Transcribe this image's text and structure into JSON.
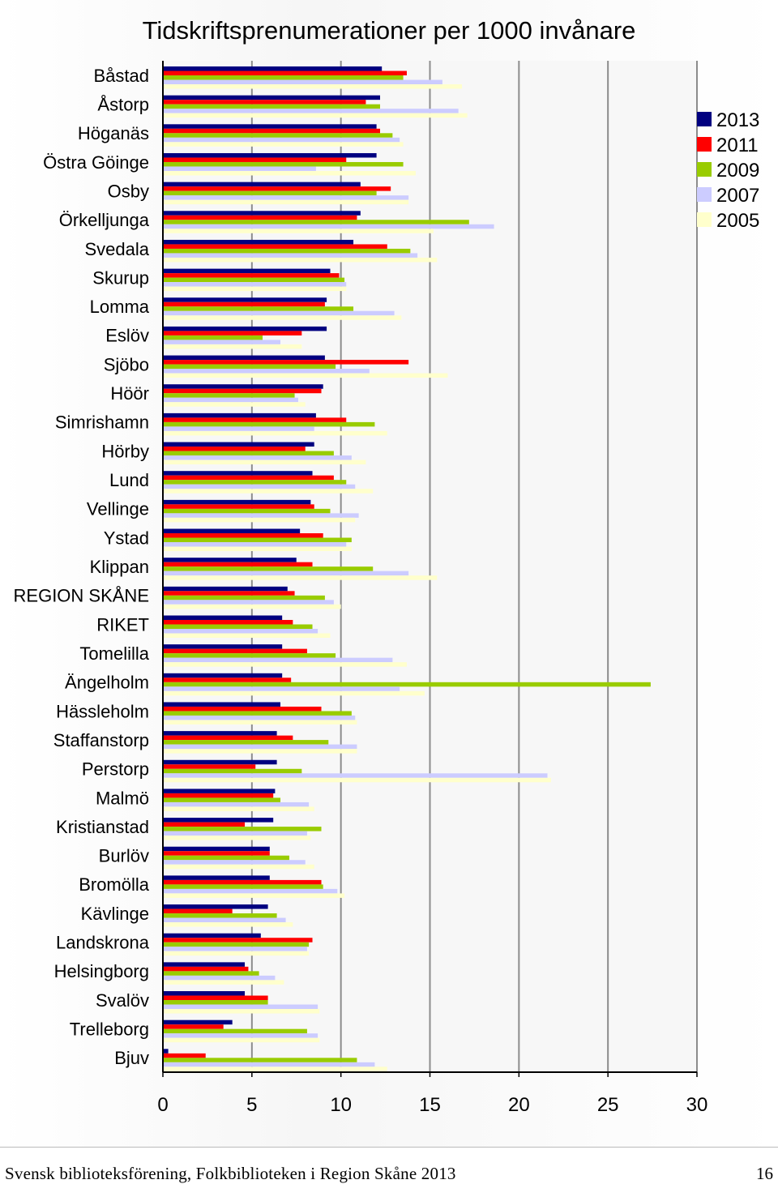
{
  "chart_data": {
    "type": "bar",
    "orientation": "horizontal",
    "title": "Tidskriftsprenumerationer per 1000 invånare",
    "xlim": [
      0,
      30
    ],
    "xticks": [
      0,
      5,
      10,
      15,
      20,
      25,
      30
    ],
    "grid": true,
    "legend_position": "right",
    "categories": [
      "Båstad",
      "Åstorp",
      "Höganäs",
      "Östra Göinge",
      "Osby",
      "Örkelljunga",
      "Svedala",
      "Skurup",
      "Lomma",
      "Eslöv",
      "Sjöbo",
      "Höör",
      "Simrishamn",
      "Hörby",
      "Lund",
      "Vellinge",
      "Ystad",
      "Klippan",
      "REGION SKÅNE",
      "RIKET",
      "Tomelilla",
      "Ängelholm",
      "Hässleholm",
      "Staffanstorp",
      "Perstorp",
      "Malmö",
      "Kristianstad",
      "Burlöv",
      "Bromölla",
      "Kävlinge",
      "Landskrona",
      "Helsingborg",
      "Svalöv",
      "Trelleborg",
      "Bjuv"
    ],
    "series": [
      {
        "name": "2013",
        "color": "#000080",
        "values": [
          12.3,
          12.2,
          12.0,
          12.0,
          11.1,
          11.1,
          10.7,
          9.4,
          9.2,
          9.2,
          9.1,
          9.0,
          8.6,
          8.5,
          8.4,
          8.3,
          7.7,
          7.5,
          7.0,
          6.7,
          6.7,
          6.7,
          6.6,
          6.4,
          6.4,
          6.3,
          6.2,
          6.0,
          6.0,
          5.9,
          5.5,
          4.6,
          4.6,
          3.9,
          0.3
        ]
      },
      {
        "name": "2011",
        "color": "#ff0000",
        "values": [
          13.7,
          11.4,
          12.2,
          10.3,
          12.8,
          10.9,
          12.6,
          9.9,
          9.1,
          7.8,
          13.8,
          8.9,
          10.3,
          8.0,
          9.6,
          8.5,
          9.0,
          8.4,
          7.4,
          7.3,
          8.1,
          7.2,
          8.9,
          7.3,
          5.2,
          6.2,
          4.6,
          6.0,
          8.9,
          3.9,
          8.4,
          4.8,
          5.9,
          3.4,
          2.4
        ]
      },
      {
        "name": "2009",
        "color": "#99cc00",
        "values": [
          13.5,
          12.2,
          12.9,
          13.5,
          12.0,
          17.2,
          13.9,
          10.2,
          10.7,
          5.6,
          9.7,
          7.4,
          11.9,
          9.6,
          10.3,
          9.4,
          10.6,
          11.8,
          9.1,
          8.4,
          9.7,
          27.4,
          10.6,
          9.3,
          7.8,
          6.6,
          8.9,
          7.1,
          9.0,
          6.4,
          8.2,
          5.4,
          5.9,
          8.1,
          10.9
        ]
      },
      {
        "name": "2007",
        "color": "#ccccff",
        "values": [
          15.7,
          16.6,
          13.3,
          8.6,
          13.8,
          18.6,
          14.3,
          10.3,
          13.0,
          6.6,
          11.6,
          7.6,
          8.5,
          10.6,
          10.8,
          11.0,
          10.3,
          13.8,
          9.6,
          8.7,
          12.9,
          13.3,
          10.8,
          10.9,
          21.6,
          8.2,
          8.1,
          8.0,
          9.8,
          6.9,
          8.1,
          6.3,
          8.7,
          8.7,
          11.9
        ]
      },
      {
        "name": "2005",
        "color": "#ffffcc",
        "values": [
          16.8,
          17.1,
          13.5,
          14.2,
          13.8,
          15.2,
          15.4,
          10.3,
          13.4,
          7.8,
          16.0,
          8.0,
          12.6,
          11.4,
          11.8,
          10.8,
          10.6,
          15.4,
          10.0,
          9.4,
          13.7,
          14.7,
          10.9,
          10.9,
          21.8,
          8.5,
          8.3,
          8.5,
          10.2,
          7.3,
          8.2,
          6.8,
          8.8,
          8.8,
          12.6
        ]
      }
    ]
  },
  "footer": {
    "text": "Svensk biblioteksförening, Folkbiblioteken i Region Skåne 2013",
    "page": "16"
  }
}
